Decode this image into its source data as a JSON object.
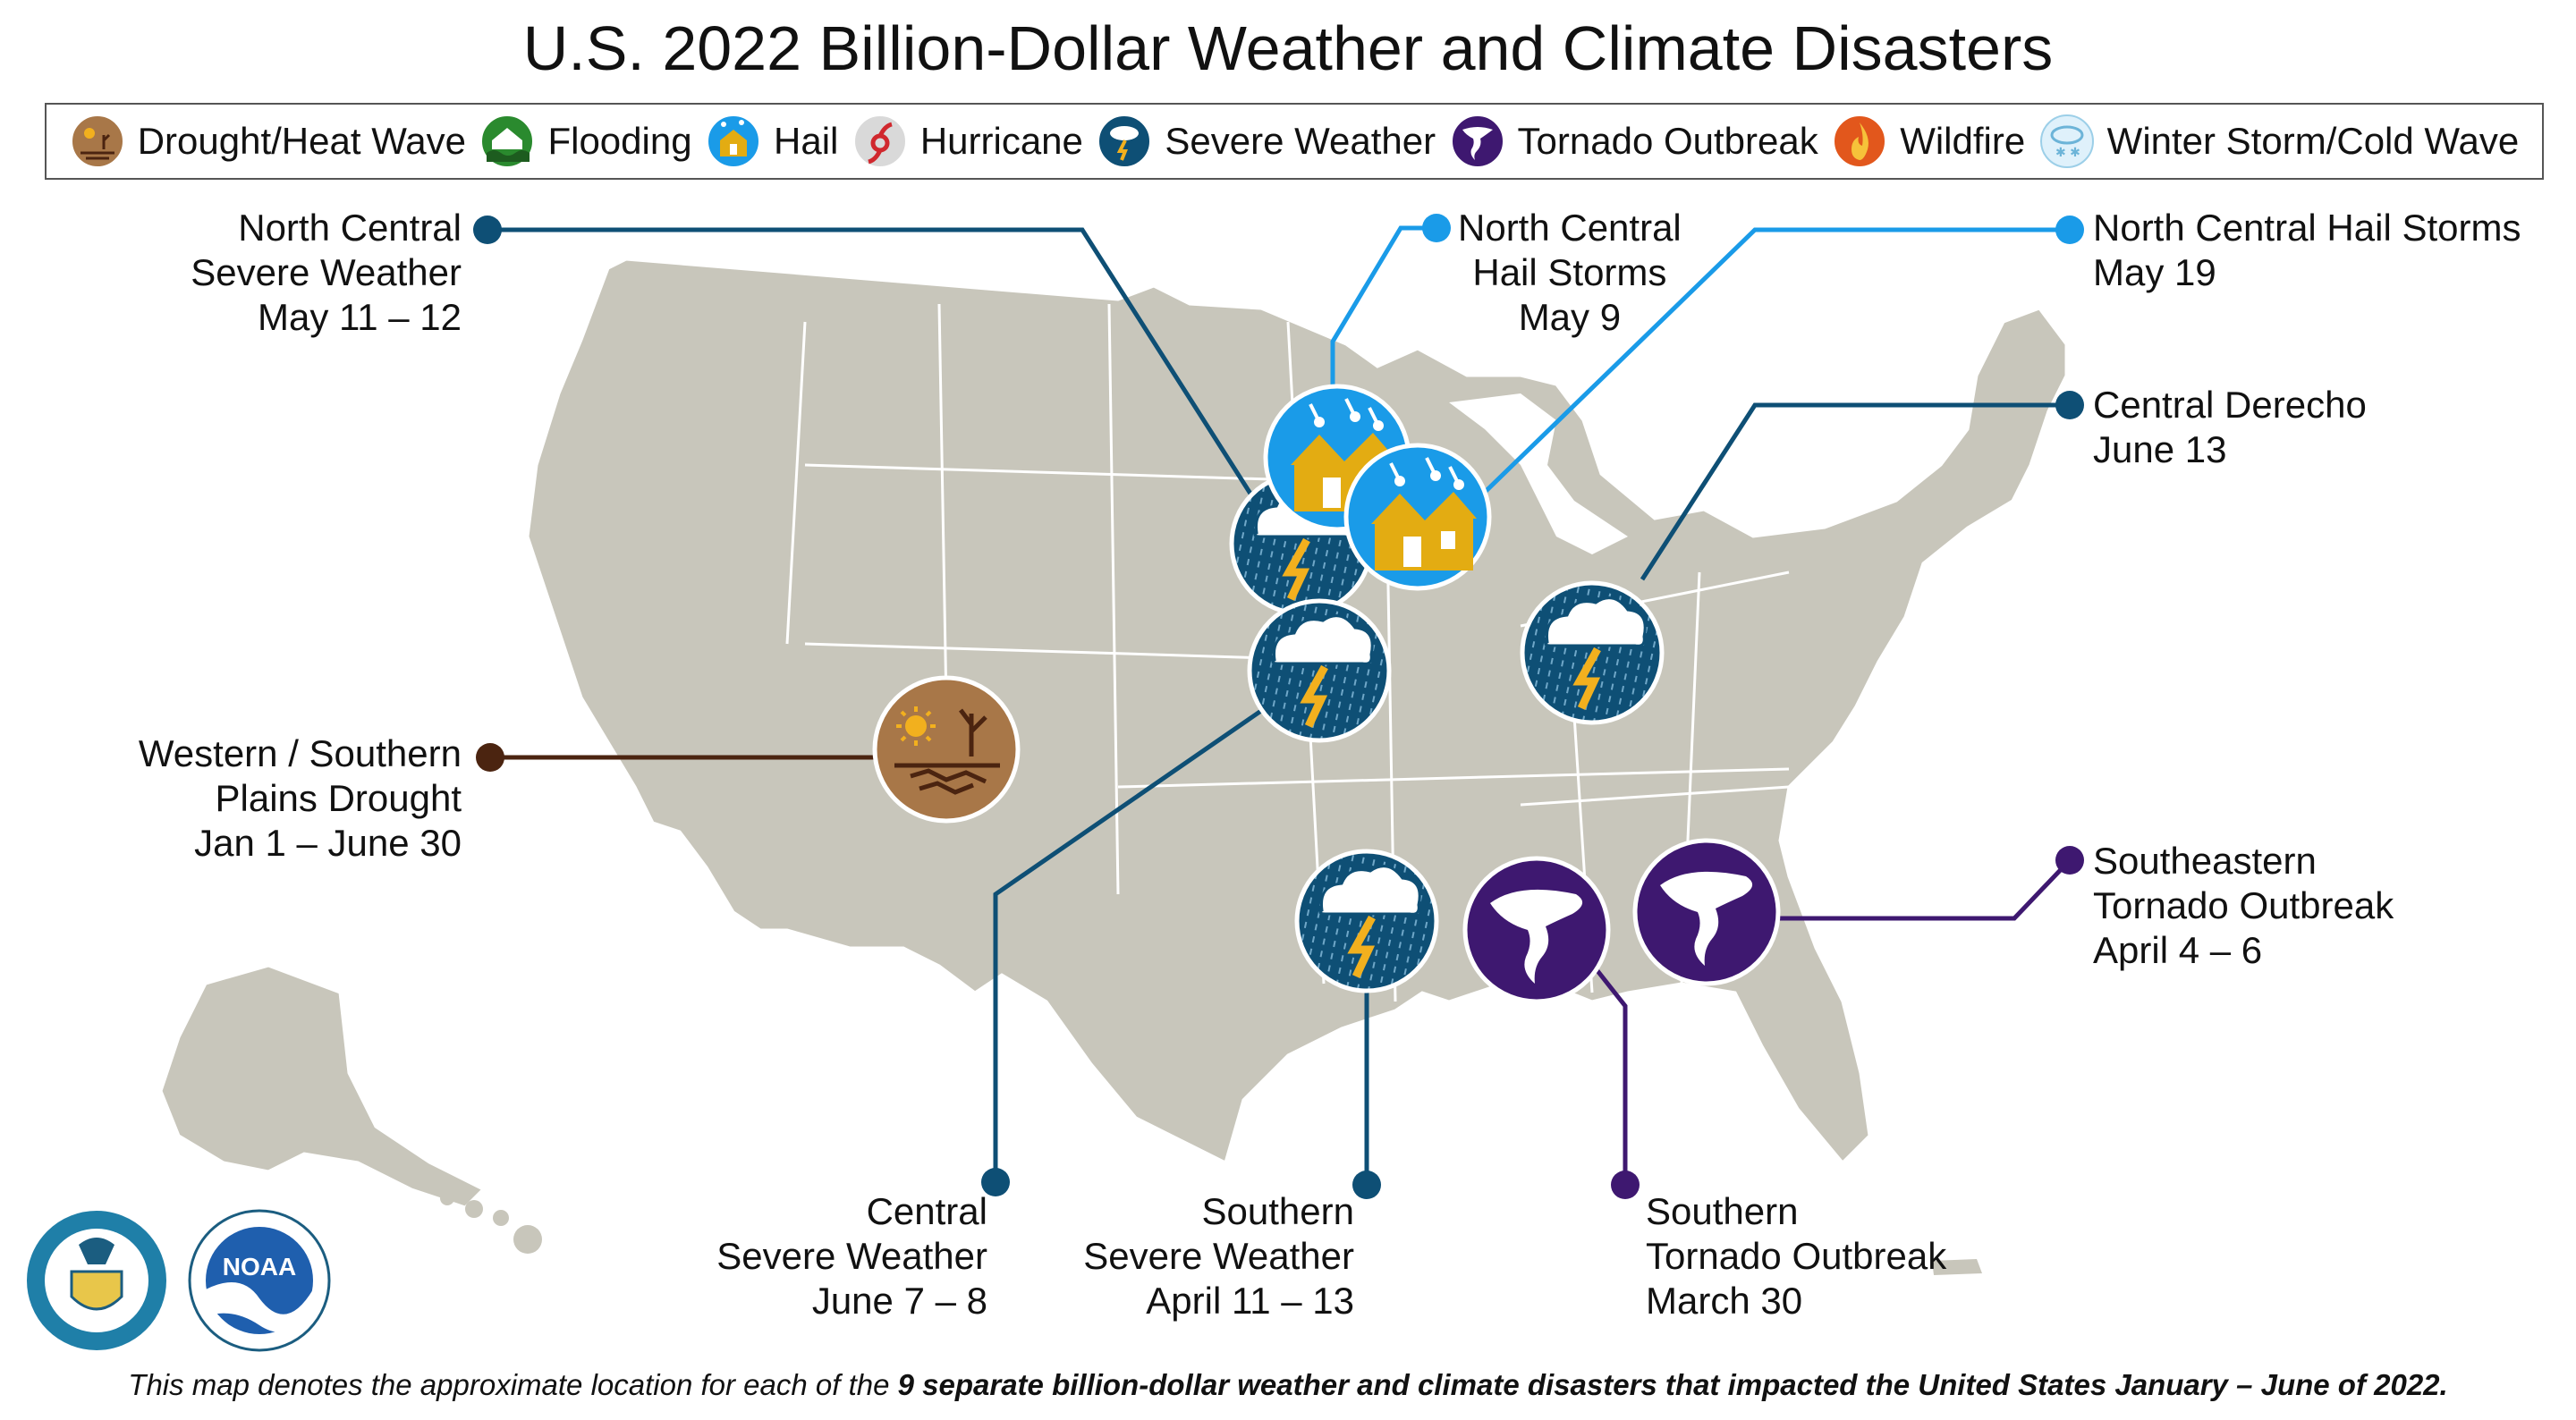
{
  "title": "U.S. 2022 Billion-Dollar Weather and Climate Disasters",
  "legend": [
    {
      "key": "drought",
      "label": "Drought/Heat Wave"
    },
    {
      "key": "flooding",
      "label": "Flooding"
    },
    {
      "key": "hail",
      "label": "Hail"
    },
    {
      "key": "hurricane",
      "label": "Hurricane"
    },
    {
      "key": "severe",
      "label": "Severe Weather"
    },
    {
      "key": "tornado",
      "label": "Tornado Outbreak"
    },
    {
      "key": "wildfire",
      "label": "Wildfire"
    },
    {
      "key": "winter",
      "label": "Winter Storm/Cold Wave"
    }
  ],
  "events": [
    {
      "id": "nc-severe",
      "type": "severe",
      "lines": [
        "North Central",
        "Severe Weather",
        "May 11 – 12"
      ]
    },
    {
      "id": "nc-hail-may9",
      "type": "hail",
      "lines": [
        "North Central",
        "Hail Storms",
        "May 9"
      ]
    },
    {
      "id": "nc-hail-may19",
      "type": "hail",
      "lines": [
        "North Central Hail Storms",
        "May 19"
      ]
    },
    {
      "id": "central-derecho",
      "type": "severe",
      "lines": [
        "Central Derecho",
        "June 13"
      ]
    },
    {
      "id": "ws-drought",
      "type": "drought",
      "lines": [
        "Western / Southern",
        "Plains Drought",
        "Jan 1 – June 30"
      ]
    },
    {
      "id": "se-tornado",
      "type": "tornado",
      "lines": [
        "Southeastern",
        "Tornado Outbreak",
        "April 4 – 6"
      ]
    },
    {
      "id": "central-severe",
      "type": "severe",
      "lines": [
        "Central",
        "Severe Weather",
        "June 7 – 8"
      ]
    },
    {
      "id": "southern-severe",
      "type": "severe",
      "lines": [
        "Southern",
        "Severe Weather",
        "April 11 – 13"
      ]
    },
    {
      "id": "southern-tornado",
      "type": "tornado",
      "lines": [
        "Southern",
        "Tornado Outbreak",
        "March 30"
      ]
    }
  ],
  "colors": {
    "severe": "#0e4f75",
    "hail": "#1a9be8",
    "drought": "#4b2410",
    "tornado": "#3e1870",
    "map_land": "#c8c6bb",
    "map_border": "#ffffff"
  },
  "logos": {
    "noaa_text": "NOAA"
  },
  "footer": {
    "prefix": "This map denotes the approximate location for each of the ",
    "bold": "9 separate billion-dollar weather and climate disasters that impacted the United States January – June of 2022."
  }
}
